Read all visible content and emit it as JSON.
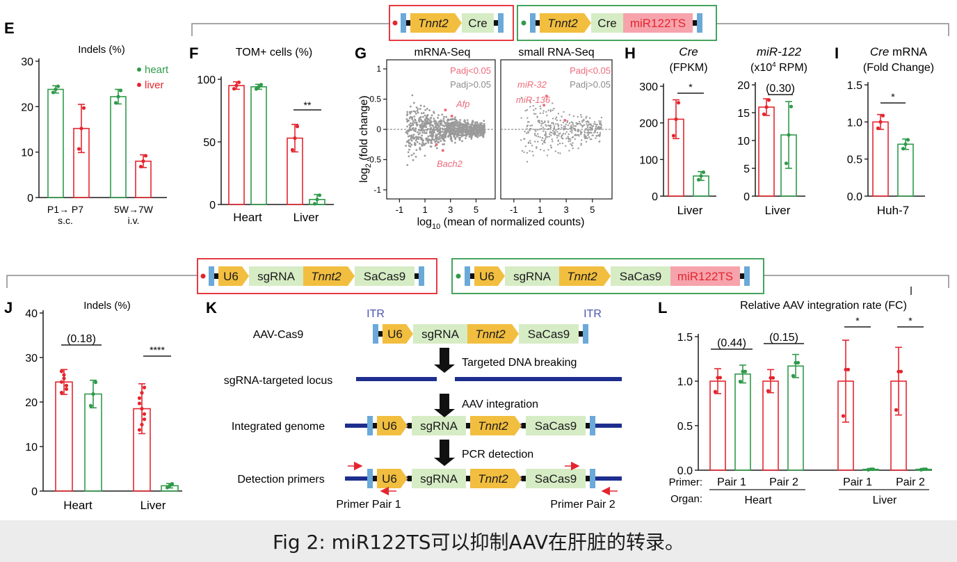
{
  "caption": "Fig 2: miR122TS可以抑制AAV在肝脏的转录。",
  "colors": {
    "red": "#e4252e",
    "green": "#2f9a4a",
    "fill_green": "#d6ecc5",
    "fill_yellow": "#f2be3f",
    "itr_blue": "#6aa9d8",
    "navy": "#1d2e8e",
    "grey": "#8c8c8c",
    "pink": "#ee6a7a"
  },
  "top_constructs": {
    "left": {
      "items": [
        "Tnnt2",
        "Cre"
      ]
    },
    "right": {
      "items": [
        "Tnnt2",
        "Cre",
        "miR122TS"
      ]
    }
  },
  "mid_constructs": {
    "left": {
      "items": [
        "U6",
        "sgRNA",
        "Tnnt2",
        "SaCas9"
      ]
    },
    "right": {
      "items": [
        "U6",
        "sgRNA",
        "Tnnt2",
        "SaCas9",
        "miR122TS"
      ]
    }
  },
  "panels": {
    "E": {
      "letter": "E",
      "title": "Indels (%)",
      "legend": [
        "heart",
        "liver"
      ],
      "yticks": [
        "0",
        "10",
        "20",
        "30"
      ],
      "xlabels": [
        [
          "P1→ P7",
          "s.c."
        ],
        [
          "5W→7W",
          "i.v."
        ]
      ]
    },
    "F": {
      "letter": "F",
      "title": "TOM+ cells (%)",
      "yticks": [
        "0",
        "50",
        "100"
      ],
      "xlabels": [
        "Heart",
        "Liver"
      ],
      "sig": "**"
    },
    "G": {
      "letter": "G",
      "sub1": "mRNA-Seq",
      "sub2": "small RNA-Seq",
      "ylabel_a": "log",
      "ylabel_sub": "2",
      "ylabel_b": " (fold change)",
      "xlabel_a": "log",
      "xlabel_sub": "10",
      "xlabel_b": " (mean of normalized counts)",
      "yticks": [
        "-1",
        "-0.5",
        "0",
        "0.5",
        "1"
      ],
      "xticks": [
        "-1",
        "1",
        "3",
        "5"
      ],
      "leg_sig": "Padj<0.05",
      "leg_ns": "Padj>0.05",
      "genes_a": [
        "Afp",
        "Bach2"
      ],
      "genes_b": [
        "miR-32",
        "miR-136"
      ]
    },
    "H": {
      "letter": "H",
      "title1a": "Cre",
      "title1b": "(FPKM)",
      "title2a": "miR-122",
      "title2b_pre": "(x10",
      "title2b_sup": "4",
      "title2b_post": " RPM)",
      "yticks1": [
        "0",
        "100",
        "200",
        "300"
      ],
      "yticks2": [
        "0",
        "5",
        "10",
        "15",
        "20"
      ],
      "xlabel": "Liver",
      "sig1": "*",
      "sig2": "(0.30)"
    },
    "I": {
      "letter": "I",
      "title1a": "Cre",
      "title1b": " mRNA",
      "title2": "(Fold Change)",
      "yticks": [
        "0.0",
        "0.5",
        "1.0",
        "1.5"
      ],
      "xlabel": "Huh-7",
      "sig": "*"
    },
    "J": {
      "letter": "J",
      "title": "Indels (%)",
      "yticks": [
        "0",
        "10",
        "20",
        "30",
        "40"
      ],
      "xlabels": [
        "Heart",
        "Liver"
      ],
      "sig1": "(0.18)",
      "sig2": "****"
    },
    "K": {
      "letter": "K",
      "itr": "ITR",
      "rows": [
        "AAV-Cas9",
        "sgRNA-targeted locus",
        "Integrated genome",
        "Detection primers"
      ],
      "steps": [
        "Targeted DNA breaking",
        "AAV integration",
        "PCR detection"
      ],
      "primer1": "Primer Pair 1",
      "primer2": "Primer Pair 2",
      "items": [
        "U6",
        "sgRNA",
        "Tnnt2",
        "SaCas9"
      ]
    },
    "L": {
      "letter": "L",
      "title": "Relative AAV integration rate (FC)",
      "yticks": [
        "0.0",
        "0.5",
        "1.0",
        "1.5"
      ],
      "primer_label": "Primer:",
      "organ_label": "Organ:",
      "pairs": [
        "Pair 1",
        "Pair 2",
        "Pair 1",
        "Pair 2"
      ],
      "organs": [
        "Heart",
        "Liver"
      ],
      "sig1": "(0.44)",
      "sig2": "(0.15)",
      "sig3": "*",
      "sig4": "*"
    }
  },
  "chart_data": [
    {
      "panel": "E",
      "type": "bar",
      "title": "Indels (%)",
      "categories": [
        "P1→ P7 s.c.",
        "5W→7W i.v."
      ],
      "ylim": [
        0,
        30
      ],
      "series": [
        {
          "name": "heart",
          "values": [
            23.8,
            22.2
          ],
          "err": [
            0.8,
            1.6
          ]
        },
        {
          "name": "liver",
          "values": [
            15.2,
            8.0
          ],
          "err": [
            5.3,
            1.4
          ]
        }
      ]
    },
    {
      "panel": "F",
      "type": "bar",
      "title": "TOM+ cells (%)",
      "categories": [
        "Heart",
        "Liver"
      ],
      "ylim": [
        0,
        100
      ],
      "series": [
        {
          "values": [
            95,
            53
          ],
          "err": [
            3,
            11
          ]
        },
        {
          "values": [
            94,
            4
          ],
          "err": [
            2,
            4
          ]
        }
      ]
    },
    {
      "panel": "H",
      "type": "bar",
      "title": "Cre (FPKM)",
      "categories": [
        "Liver"
      ],
      "ylim": [
        0,
        300
      ],
      "series": [
        {
          "values": [
            210
          ],
          "err": [
            53
          ]
        },
        {
          "values": [
            55
          ],
          "err": [
            12
          ]
        }
      ]
    },
    {
      "panel": "H",
      "type": "bar",
      "title": "miR-122 (x10^4 RPM)",
      "categories": [
        "Liver"
      ],
      "ylim": [
        0,
        20
      ],
      "series": [
        {
          "values": [
            16
          ],
          "err": [
            1.5
          ]
        },
        {
          "values": [
            11
          ],
          "err": [
            6
          ]
        }
      ]
    },
    {
      "panel": "I",
      "type": "bar",
      "title": "Cre mRNA (Fold Change)",
      "categories": [
        "Huh-7"
      ],
      "ylim": [
        0,
        1.5
      ],
      "series": [
        {
          "values": [
            1.0
          ],
          "err": [
            0.1
          ]
        },
        {
          "values": [
            0.7
          ],
          "err": [
            0.07
          ]
        }
      ]
    },
    {
      "panel": "J",
      "type": "bar",
      "title": "Indels (%)",
      "categories": [
        "Heart",
        "Liver"
      ],
      "ylim": [
        0,
        40
      ],
      "series": [
        {
          "values": [
            24.5,
            18.5
          ],
          "err": [
            2.8,
            5.6
          ]
        },
        {
          "values": [
            21.8,
            1.2
          ],
          "err": [
            3.1,
            0.5
          ]
        }
      ]
    },
    {
      "panel": "L",
      "type": "bar",
      "title": "Relative AAV integration rate (FC)",
      "categories": [
        "Heart Pair 1",
        "Heart Pair 2",
        "Liver Pair 1",
        "Liver Pair 2"
      ],
      "ylim": [
        0,
        1.5
      ],
      "series": [
        {
          "values": [
            1.0,
            1.0,
            1.0,
            1.0
          ],
          "err": [
            0.14,
            0.13,
            0.46,
            0.38
          ]
        },
        {
          "values": [
            1.08,
            1.17,
            0.01,
            0.01
          ],
          "err": [
            0.1,
            0.13,
            0.005,
            0.005
          ]
        }
      ]
    }
  ]
}
